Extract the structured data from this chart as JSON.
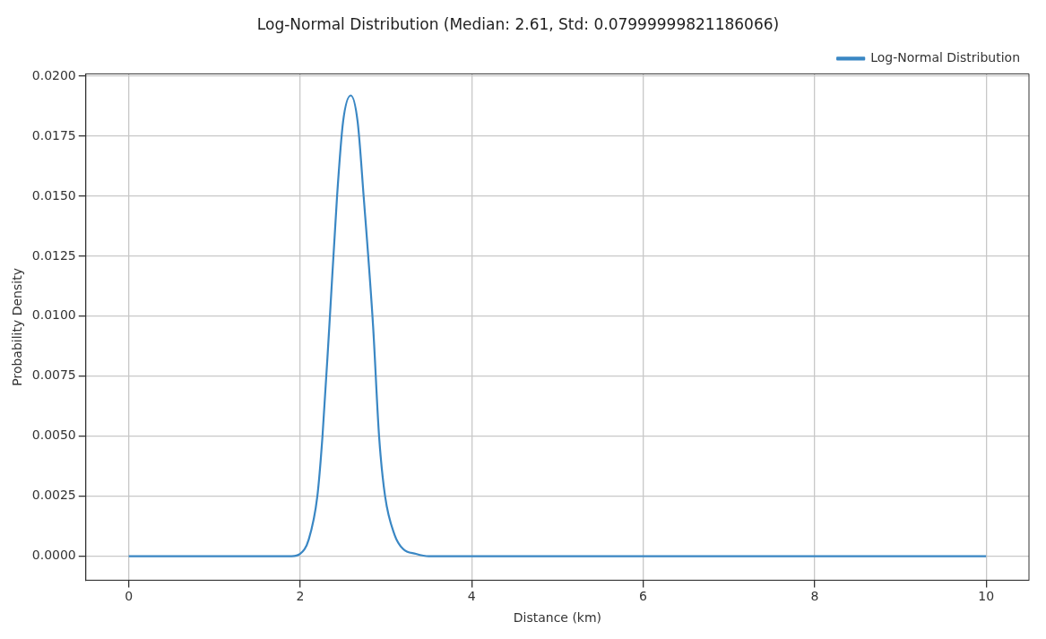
{
  "chart_data": {
    "type": "line",
    "title": "Log-Normal Distribution (Median: 2.61, Std: 0.07999999821186066)",
    "xlabel": "Distance (km)",
    "ylabel": "Probability Density",
    "x": [
      0,
      1.9,
      2.0,
      2.1,
      2.2,
      2.26,
      2.34,
      2.43,
      2.5,
      2.59,
      2.67,
      2.74,
      2.85,
      2.92,
      2.99,
      3.1,
      3.2,
      3.35,
      3.5,
      10
    ],
    "series": [
      {
        "name": "Log-Normal Distribution",
        "color": "#3a87c4",
        "values": [
          0,
          0,
          0.0001,
          0.0007,
          0.0025,
          0.005,
          0.0096,
          0.015,
          0.0181,
          0.0192,
          0.0181,
          0.015,
          0.0096,
          0.005,
          0.0025,
          0.0009,
          0.0003,
          0.0001,
          0,
          0
        ]
      }
    ],
    "xlim": [
      -0.5,
      10.5
    ],
    "xticks": [
      0,
      2,
      4,
      6,
      8,
      10
    ],
    "ylim": [
      -0.001,
      0.0201
    ],
    "yticks": [
      {
        "value": 0,
        "label": "0.0000"
      },
      {
        "value": 0.0025,
        "label": "0.0025"
      },
      {
        "value": 0.005,
        "label": "0.0050"
      },
      {
        "value": 0.0075,
        "label": "0.0075"
      },
      {
        "value": 0.01,
        "label": "0.0100"
      },
      {
        "value": 0.0125,
        "label": "0.0125"
      },
      {
        "value": 0.015,
        "label": "0.0150"
      },
      {
        "value": 0.0175,
        "label": "0.0175"
      },
      {
        "value": 0.02,
        "label": "0.0200"
      }
    ],
    "grid": true,
    "legend": "top right",
    "marker": "none",
    "line_style": "solid"
  }
}
